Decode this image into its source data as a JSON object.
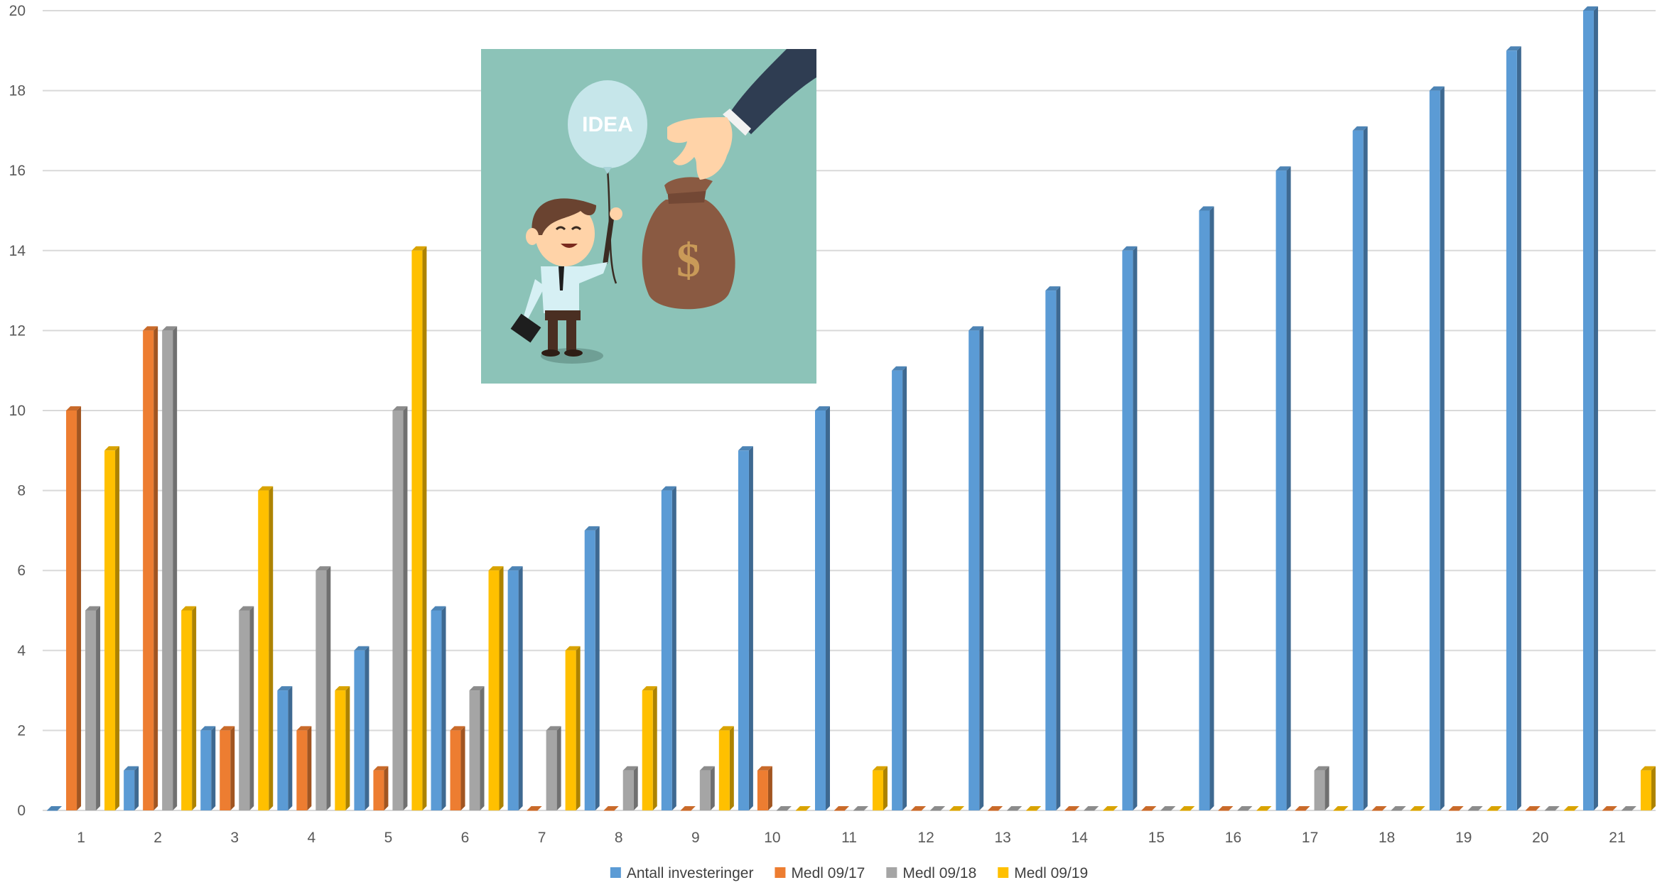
{
  "chart_data": {
    "type": "bar",
    "style": "3d-clustered-column",
    "title": "",
    "xlabel": "",
    "ylabel": "",
    "categories": [
      "1",
      "2",
      "3",
      "4",
      "5",
      "6",
      "7",
      "8",
      "9",
      "10",
      "11",
      "12",
      "13",
      "14",
      "15",
      "16",
      "17",
      "18",
      "19",
      "20",
      "21"
    ],
    "ylim": [
      0,
      20
    ],
    "yticks": [
      "0",
      "2",
      "4",
      "6",
      "8",
      "10",
      "12",
      "14",
      "16",
      "18",
      "20"
    ],
    "grid": true,
    "legend_position": "bottom",
    "series": [
      {
        "name": "Antall investeringer",
        "color": "#5b9bd5",
        "values": [
          0,
          1,
          2,
          3,
          4,
          5,
          6,
          7,
          8,
          9,
          10,
          11,
          12,
          13,
          14,
          15,
          16,
          17,
          18,
          19,
          20
        ]
      },
      {
        "name": "Medl 09/17",
        "color": "#ed7d31",
        "values": [
          10,
          12,
          2,
          2,
          1,
          2,
          0,
          0,
          0,
          1,
          0,
          0,
          0,
          0,
          0,
          0,
          0,
          0,
          0,
          0,
          0
        ]
      },
      {
        "name": "Medl 09/18",
        "color": "#a5a5a5",
        "values": [
          5,
          12,
          5,
          6,
          10,
          3,
          2,
          1,
          1,
          0,
          0,
          0,
          0,
          0,
          0,
          0,
          1,
          0,
          0,
          0,
          0
        ]
      },
      {
        "name": "Medl 09/19",
        "color": "#ffc000",
        "values": [
          9,
          5,
          8,
          3,
          14,
          6,
          4,
          3,
          2,
          0,
          1,
          0,
          0,
          0,
          0,
          0,
          0,
          0,
          0,
          0,
          1
        ]
      }
    ]
  },
  "illustration": {
    "balloon_text": "IDEA",
    "bag_symbol": "$",
    "icon": "investor-hand-money-bag-illustration"
  }
}
